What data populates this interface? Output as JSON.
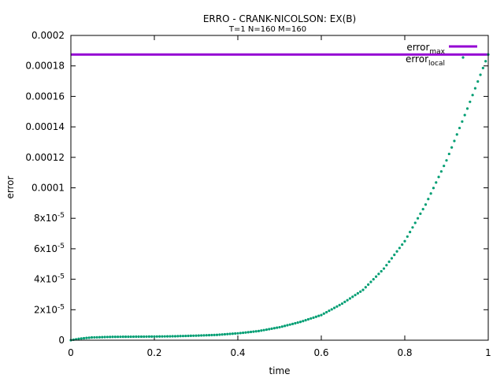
{
  "chart_data": {
    "type": "scatter",
    "title": "ERRO - CRANK-NICOLSON: EX(B)",
    "subtitle": "T=1 N=160 M=160",
    "xlabel": "time",
    "ylabel": "error",
    "xlim": [
      0,
      1
    ],
    "ylim": [
      0,
      0.0002
    ],
    "xticks": [
      "0",
      "0.2",
      "0.4",
      "0.6",
      "0.8",
      "1"
    ],
    "yticks": [
      "0",
      "2x10-5",
      "4x10-5",
      "6x10-5",
      "8x10-5",
      "0.0001",
      "0.00012",
      "0.00014",
      "0.00016",
      "0.00018",
      "0.0002"
    ],
    "legend_position": "top-right",
    "series": [
      {
        "name": "error",
        "name_sub": "max",
        "type": "hline",
        "color": "#9400D3",
        "value": 0.0001875
      },
      {
        "name": "error",
        "name_sub": "local",
        "type": "scatter",
        "color": "#009E73",
        "points": [
          [
            0,
            0
          ],
          [
            0.02,
            1e-06
          ],
          [
            0.05,
            1.8e-06
          ],
          [
            0.1,
            2.2e-06
          ],
          [
            0.15,
            2.3e-06
          ],
          [
            0.2,
            2.4e-06
          ],
          [
            0.25,
            2.6e-06
          ],
          [
            0.3,
            3e-06
          ],
          [
            0.35,
            3.5e-06
          ],
          [
            0.4,
            4.5e-06
          ],
          [
            0.45,
            6e-06
          ],
          [
            0.5,
            8.5e-06
          ],
          [
            0.55,
            1.2e-05
          ],
          [
            0.6,
            1.65e-05
          ],
          [
            0.65,
            2.4e-05
          ],
          [
            0.7,
            3.3e-05
          ],
          [
            0.75,
            4.7e-05
          ],
          [
            0.8,
            6.5e-05
          ],
          [
            0.85,
            8.9e-05
          ],
          [
            0.9,
            0.000118
          ],
          [
            0.95,
            0.000152
          ],
          [
            1.0,
            0.0001875
          ]
        ]
      }
    ]
  }
}
